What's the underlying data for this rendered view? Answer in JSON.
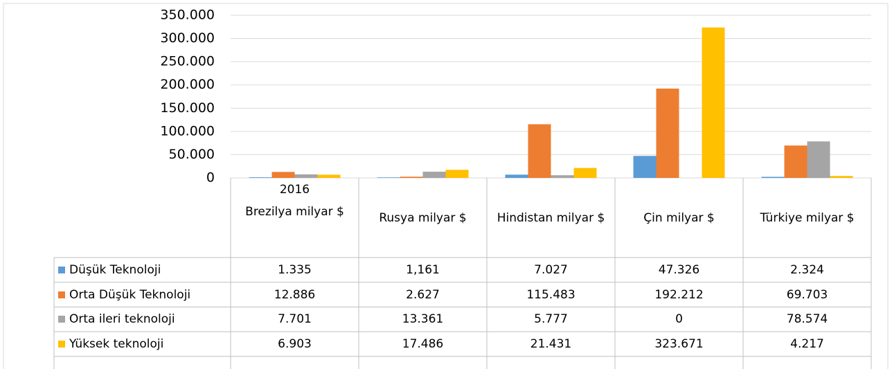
{
  "chart_data": {
    "type": "bar",
    "period": "2016",
    "categories": [
      "Brezilya milyar $",
      "Rusya milyar $",
      "Hindistan milyar $",
      "Çin milyar $",
      "Türkiye milyar $"
    ],
    "series": [
      {
        "name": "Düşük Teknoloji",
        "color": "#5b9bd5",
        "values": [
          1335,
          1161,
          7027,
          47326,
          2324
        ],
        "value_labels": [
          "1.335",
          "1,161",
          "7.027",
          "47.326",
          "2.324"
        ]
      },
      {
        "name": "Orta Düşük Teknoloji",
        "color": "#ed7d31",
        "values": [
          12886,
          2627,
          115483,
          192212,
          69703
        ],
        "value_labels": [
          "12.886",
          "2.627",
          "115.483",
          "192.212",
          "69.703"
        ]
      },
      {
        "name": "Orta ileri teknoloji",
        "color": "#a5a5a5",
        "values": [
          7701,
          13361,
          5777,
          0,
          78574
        ],
        "value_labels": [
          "7.701",
          "13.361",
          "5.777",
          "0",
          "78.574"
        ]
      },
      {
        "name": "Yüksek teknoloji",
        "color": "#ffc000",
        "values": [
          6903,
          17486,
          21431,
          323671,
          4217
        ],
        "value_labels": [
          "6.903",
          "17.486",
          "21.431",
          "323.671",
          "4.217"
        ]
      }
    ],
    "ylim": [
      0,
      350000
    ],
    "yticks": [
      0,
      {
        "value": 50000,
        "label": "50.000"
      },
      {
        "value": 100000,
        "label": "100.000"
      },
      {
        "value": 150000,
        "label": "150.000"
      },
      {
        "value": 200000,
        "label": "200.000"
      },
      {
        "value": 250000,
        "label": "250.000"
      },
      {
        "value": 300000,
        "label": "300.000"
      },
      {
        "value": 350000,
        "label": "350.000"
      }
    ],
    "grid": true
  }
}
